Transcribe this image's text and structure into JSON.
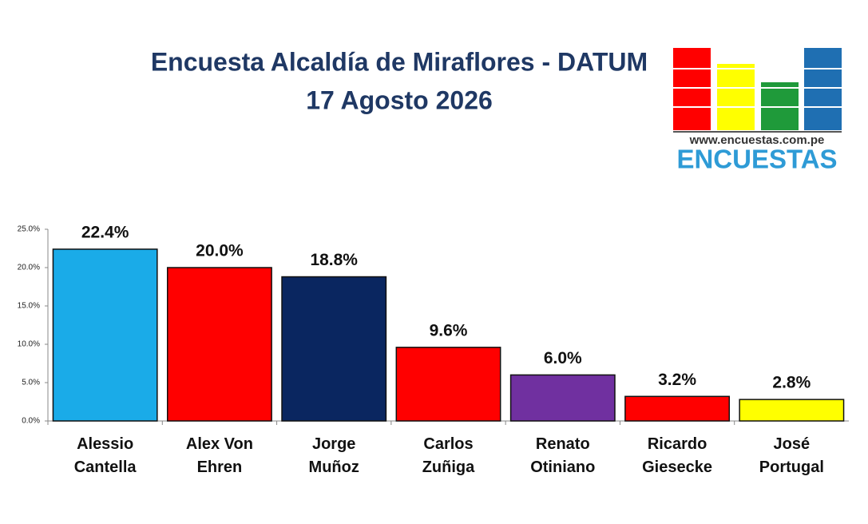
{
  "chart_data": {
    "type": "bar",
    "title": "Encuesta Alcaldía de Miraflores - DATUM",
    "subtitle": "17 Agosto 2026",
    "categories": [
      "Alessio Cantella",
      "Alex Von Ehren",
      "Jorge Muñoz",
      "Carlos Zuñiga",
      "Renato Otiniano",
      "Ricardo Giesecke",
      "José Portugal"
    ],
    "values": [
      22.4,
      20.0,
      18.8,
      9.6,
      6.0,
      3.2,
      2.8
    ],
    "value_labels": [
      "22.4%",
      "20.0%",
      "18.8%",
      "9.6%",
      "6.0%",
      "3.2%",
      "2.8%"
    ],
    "colors": [
      "#1aabe8",
      "#ff0000",
      "#0a2660",
      "#ff0000",
      "#7030a0",
      "#ff0000",
      "#ffff00"
    ],
    "ylim": [
      0,
      25
    ],
    "yticks": [
      {
        "value": 0,
        "label": "0.0%"
      },
      {
        "value": 5,
        "label": "5.0%"
      },
      {
        "value": 10,
        "label": "10.0%"
      },
      {
        "value": 15,
        "label": "15.0%"
      },
      {
        "value": 20,
        "label": "20.0%"
      },
      {
        "value": 25,
        "label": "25.0%"
      }
    ],
    "grid": false
  },
  "logo": {
    "url": "www.encuestas.com.pe",
    "name": "ENCUESTAS"
  }
}
